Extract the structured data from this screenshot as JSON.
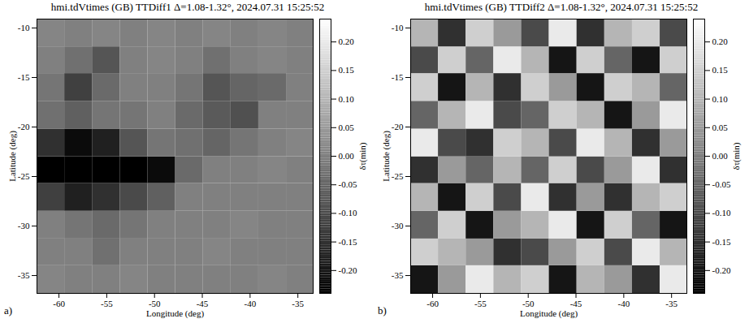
{
  "chart_data": [
    {
      "type": "heatmap",
      "title": "hmi.tdVtimes (GB) TTDiff1 Δ=1.08-1.32°, 2024.07.31 15:25:52",
      "panel_label": "a)",
      "x_label": "Longitude (deg)",
      "y_label": "Latitude (deg)",
      "xlim": [
        -62.3,
        -33.4
      ],
      "ylim": [
        -36.8,
        -9.1
      ],
      "xticks": [
        -60,
        -55,
        -50,
        -45,
        -40,
        -35
      ],
      "yticks": [
        -35,
        -30,
        -25,
        -20,
        -15,
        -10
      ],
      "lon_edges": [
        -62.3,
        -59.4,
        -56.5,
        -53.6,
        -50.7,
        -47.8,
        -44.9,
        -42.0,
        -39.1,
        -36.2,
        -33.4
      ],
      "lat_edges": [
        -36.8,
        -34.0,
        -31.3,
        -28.5,
        -25.7,
        -23.0,
        -20.2,
        -17.4,
        -14.6,
        -11.9,
        -9.1
      ],
      "cells": [
        [
          0.01,
          0.0,
          0.0,
          0.01,
          0.0,
          0.0,
          0.0,
          0.0,
          0.01,
          0.0
        ],
        [
          0.0,
          0.0,
          -0.03,
          0.0,
          0.0,
          0.0,
          0.01,
          0.0,
          0.0,
          0.0
        ],
        [
          0.0,
          -0.02,
          -0.04,
          -0.02,
          0.0,
          0.0,
          0.0,
          0.01,
          0.0,
          0.0
        ],
        [
          -0.12,
          -0.18,
          -0.15,
          -0.1,
          -0.06,
          0.0,
          0.0,
          0.0,
          0.0,
          0.0
        ],
        [
          -0.25,
          -0.25,
          -0.25,
          -0.25,
          -0.22,
          -0.04,
          0.0,
          0.0,
          0.01,
          0.0
        ],
        [
          -0.15,
          -0.22,
          -0.18,
          -0.08,
          -0.02,
          -0.03,
          -0.05,
          -0.02,
          0.0,
          0.01
        ],
        [
          -0.03,
          -0.06,
          -0.02,
          -0.02,
          0.0,
          -0.04,
          -0.07,
          -0.09,
          0.0,
          0.0
        ],
        [
          -0.02,
          -0.12,
          -0.04,
          0.0,
          0.0,
          -0.02,
          -0.08,
          -0.05,
          -0.04,
          0.0
        ],
        [
          0.0,
          -0.03,
          -0.08,
          0.0,
          0.01,
          0.0,
          -0.03,
          0.0,
          0.01,
          0.0
        ],
        [
          0.01,
          0.0,
          0.01,
          0.0,
          0.01,
          0.0,
          0.01,
          0.0,
          0.01,
          0.0
        ]
      ],
      "colorbar": {
        "label": "δτ(min)",
        "range": [
          -0.24,
          0.24
        ],
        "ticks": [
          {
            "value": -0.2,
            "label": "-0.20"
          },
          {
            "value": -0.15,
            "label": "-0.15"
          },
          {
            "value": -0.1,
            "label": "-0.10"
          },
          {
            "value": -0.05,
            "label": "-0.05"
          },
          {
            "value": 0,
            "label": "0.00"
          },
          {
            "value": 0.05,
            "label": "0.05"
          },
          {
            "value": 0.1,
            "label": "0.10"
          },
          {
            "value": 0.15,
            "label": "0.15"
          },
          {
            "value": 0.2,
            "label": "0.20"
          }
        ]
      }
    },
    {
      "type": "heatmap",
      "title": "hmi.tdVtimes (GB) TTDiff2 Δ=1.08-1.32°, 2024.07.31 15:25:52",
      "panel_label": "b)",
      "x_label": "Longitude (deg)",
      "y_label": "Latitude (deg)",
      "xlim": [
        -62.3,
        -33.4
      ],
      "ylim": [
        -36.8,
        -9.1
      ],
      "xticks": [
        -60,
        -55,
        -50,
        -45,
        -40,
        -35
      ],
      "yticks": [
        -35,
        -30,
        -25,
        -20,
        -15,
        -10
      ],
      "lon_edges": [
        -62.3,
        -59.4,
        -56.5,
        -53.6,
        -50.7,
        -47.8,
        -44.9,
        -42.0,
        -39.1,
        -36.2,
        -33.4
      ],
      "lat_edges": [
        -36.8,
        -34.0,
        -31.3,
        -28.5,
        -25.7,
        -23.0,
        -20.2,
        -17.4,
        -14.6,
        -11.9,
        -9.1
      ],
      "cells": [
        [
          -0.2,
          0.05,
          0.2,
          0.1,
          0.15,
          -0.2,
          0.1,
          0.05,
          -0.15,
          0.2
        ],
        [
          0.15,
          0.1,
          0.05,
          -0.15,
          -0.1,
          0.05,
          0.15,
          -0.1,
          0.2,
          0.1
        ],
        [
          -0.05,
          0.15,
          -0.2,
          0.05,
          0.1,
          0.2,
          -0.2,
          0.15,
          -0.05,
          -0.2
        ],
        [
          0.1,
          -0.2,
          0.15,
          -0.1,
          0.2,
          -0.15,
          0.05,
          -0.15,
          0.1,
          0.15
        ],
        [
          -0.15,
          0.05,
          -0.05,
          0.1,
          -0.05,
          0.15,
          -0.1,
          0.05,
          0.2,
          -0.15
        ],
        [
          0.2,
          -0.1,
          -0.15,
          0.15,
          0.1,
          -0.1,
          0.2,
          0.1,
          -0.15,
          0.05
        ],
        [
          -0.05,
          0.1,
          0.2,
          -0.1,
          -0.05,
          0.15,
          0.1,
          -0.2,
          0.05,
          0.2
        ],
        [
          0.15,
          -0.2,
          0.1,
          -0.15,
          0.15,
          0.05,
          -0.2,
          0.15,
          0.1,
          -0.05
        ],
        [
          -0.1,
          0.15,
          -0.05,
          0.2,
          0.1,
          -0.2,
          0.15,
          -0.05,
          -0.2,
          0.15
        ],
        [
          0.1,
          -0.15,
          0.15,
          0.05,
          -0.1,
          0.2,
          -0.15,
          0.1,
          0.15,
          -0.1
        ]
      ],
      "colorbar": {
        "label": "δτ(min)",
        "range": [
          -0.24,
          0.24
        ],
        "ticks": [
          {
            "value": -0.2,
            "label": "-0.20"
          },
          {
            "value": -0.15,
            "label": "-0.15"
          },
          {
            "value": -0.1,
            "label": "-0.10"
          },
          {
            "value": -0.05,
            "label": "-0.05"
          },
          {
            "value": 0,
            "label": "0.00"
          },
          {
            "value": 0.05,
            "label": "0.05"
          },
          {
            "value": 0.1,
            "label": "0.10"
          },
          {
            "value": 0.15,
            "label": "0.15"
          },
          {
            "value": 0.2,
            "label": "0.20"
          }
        ]
      }
    }
  ]
}
